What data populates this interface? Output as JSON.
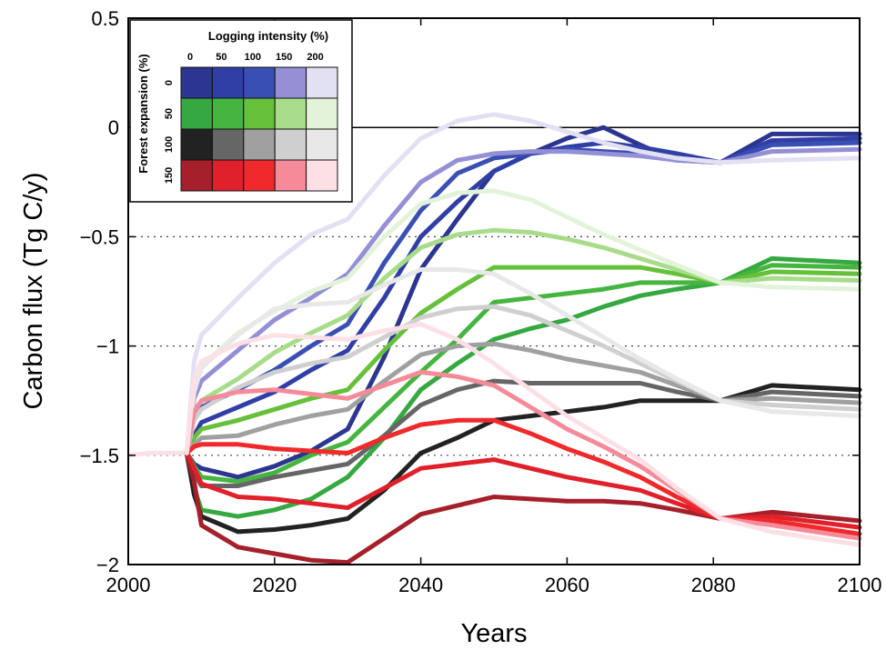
{
  "chart_data": {
    "type": "line",
    "xlabel": "Years",
    "ylabel": "Carbon flux (Tg C/y)",
    "xlim": [
      2000,
      2100
    ],
    "ylim": [
      -2,
      0.5
    ],
    "xticks": [
      "2000",
      "2020",
      "2040",
      "2060",
      "2080",
      "2100"
    ],
    "yticks": [
      "0.5",
      "0",
      "-0.5",
      "-1",
      "-1.5",
      "-2"
    ],
    "grid": "dotted horizontal at -0.5, -1, -1.5; solid line at 0",
    "legend": {
      "placement": "top-left",
      "title_x": "Logging intensity (%)",
      "title_y": "Forest expansion (%)",
      "logging_levels": [
        "0",
        "50",
        "100",
        "150",
        "200"
      ],
      "expansion_levels": [
        "0",
        "50",
        "100",
        "150"
      ],
      "colors": [
        [
          "#2c3590",
          "#2f3fa6",
          "#3a4fb3",
          "#9590d6",
          "#e2e0f3"
        ],
        [
          "#35a840",
          "#45b540",
          "#66c03a",
          "#a8dc8a",
          "#e3f3da"
        ],
        [
          "#222222",
          "#666666",
          "#a0a0a0",
          "#cfcfcf",
          "#e8e8e8"
        ],
        [
          "#a5202a",
          "#e0202a",
          "#f02a2a",
          "#f58a98",
          "#fde0e6"
        ]
      ]
    },
    "series_common_start": {
      "x": [
        2000,
        2003,
        2008
      ],
      "y": [
        -1.5,
        -1.49,
        -1.49
      ]
    },
    "series": [
      {
        "expansion": "0",
        "logging": "0",
        "x": [
          2008,
          2009,
          2010,
          2015,
          2020,
          2025,
          2030,
          2035,
          2040,
          2045,
          2050,
          2055,
          2060,
          2065,
          2070,
          2075,
          2081,
          2088,
          2100
        ],
        "y": [
          -1.49,
          -1.54,
          -1.56,
          -1.6,
          -1.55,
          -1.48,
          -1.38,
          -1.05,
          -0.65,
          -0.42,
          -0.2,
          -0.12,
          -0.05,
          0.0,
          -0.08,
          -0.15,
          -0.16,
          -0.03,
          -0.03
        ]
      },
      {
        "expansion": "0",
        "logging": "50",
        "x": [
          2008,
          2009,
          2010,
          2015,
          2020,
          2025,
          2030,
          2035,
          2040,
          2045,
          2050,
          2055,
          2060,
          2065,
          2070,
          2075,
          2081,
          2088,
          2100
        ],
        "y": [
          -1.49,
          -1.41,
          -1.35,
          -1.28,
          -1.21,
          -1.11,
          -1.02,
          -0.78,
          -0.5,
          -0.34,
          -0.2,
          -0.12,
          -0.09,
          -0.07,
          -0.09,
          -0.12,
          -0.16,
          -0.06,
          -0.05
        ]
      },
      {
        "expansion": "0",
        "logging": "100",
        "x": [
          2008,
          2009,
          2010,
          2015,
          2020,
          2025,
          2030,
          2035,
          2040,
          2045,
          2050,
          2055,
          2060,
          2065,
          2070,
          2075,
          2081,
          2088,
          2100
        ],
        "y": [
          -1.49,
          -1.33,
          -1.28,
          -1.2,
          -1.11,
          -1.0,
          -0.9,
          -0.62,
          -0.38,
          -0.21,
          -0.14,
          -0.12,
          -0.1,
          -0.11,
          -0.12,
          -0.14,
          -0.16,
          -0.08,
          -0.07
        ]
      },
      {
        "expansion": "0",
        "logging": "150",
        "x": [
          2008,
          2009,
          2010,
          2015,
          2020,
          2025,
          2030,
          2035,
          2040,
          2045,
          2050,
          2055,
          2060,
          2065,
          2070,
          2075,
          2081,
          2088,
          2100
        ],
        "y": [
          -1.49,
          -1.24,
          -1.16,
          -1.02,
          -0.88,
          -0.78,
          -0.67,
          -0.45,
          -0.25,
          -0.15,
          -0.12,
          -0.11,
          -0.11,
          -0.12,
          -0.13,
          -0.15,
          -0.16,
          -0.11,
          -0.1
        ]
      },
      {
        "expansion": "0",
        "logging": "200",
        "x": [
          2008,
          2009,
          2010,
          2015,
          2020,
          2025,
          2030,
          2035,
          2040,
          2045,
          2050,
          2055,
          2060,
          2065,
          2070,
          2075,
          2081,
          2088,
          2100
        ],
        "y": [
          -1.49,
          -1.07,
          -0.95,
          -0.78,
          -0.62,
          -0.49,
          -0.42,
          -0.22,
          -0.05,
          0.03,
          0.06,
          0.03,
          -0.02,
          -0.07,
          -0.11,
          -0.14,
          -0.16,
          -0.15,
          -0.14
        ]
      },
      {
        "expansion": "50",
        "logging": "0",
        "x": [
          2008,
          2009,
          2010,
          2015,
          2020,
          2025,
          2030,
          2035,
          2040,
          2045,
          2050,
          2055,
          2060,
          2065,
          2070,
          2075,
          2081,
          2088,
          2100
        ],
        "y": [
          -1.49,
          -1.65,
          -1.75,
          -1.78,
          -1.75,
          -1.7,
          -1.6,
          -1.42,
          -1.2,
          -1.08,
          -0.97,
          -0.92,
          -0.88,
          -0.82,
          -0.77,
          -0.74,
          -0.71,
          -0.6,
          -0.62
        ]
      },
      {
        "expansion": "50",
        "logging": "50",
        "x": [
          2008,
          2009,
          2010,
          2015,
          2020,
          2025,
          2030,
          2035,
          2040,
          2045,
          2050,
          2055,
          2060,
          2065,
          2070,
          2075,
          2081,
          2088,
          2100
        ],
        "y": [
          -1.49,
          -1.55,
          -1.6,
          -1.62,
          -1.58,
          -1.5,
          -1.44,
          -1.28,
          -1.12,
          -0.97,
          -0.8,
          -0.78,
          -0.76,
          -0.74,
          -0.71,
          -0.71,
          -0.71,
          -0.63,
          -0.64
        ]
      },
      {
        "expansion": "50",
        "logging": "100",
        "x": [
          2008,
          2009,
          2010,
          2015,
          2020,
          2025,
          2030,
          2035,
          2040,
          2045,
          2050,
          2055,
          2060,
          2065,
          2070,
          2075,
          2081,
          2088,
          2100
        ],
        "y": [
          -1.49,
          -1.42,
          -1.38,
          -1.34,
          -1.29,
          -1.24,
          -1.2,
          -1.02,
          -0.85,
          -0.74,
          -0.64,
          -0.64,
          -0.64,
          -0.64,
          -0.64,
          -0.67,
          -0.71,
          -0.66,
          -0.67
        ]
      },
      {
        "expansion": "50",
        "logging": "150",
        "x": [
          2008,
          2009,
          2010,
          2015,
          2020,
          2025,
          2030,
          2035,
          2040,
          2045,
          2050,
          2055,
          2060,
          2065,
          2070,
          2075,
          2081,
          2088,
          2100
        ],
        "y": [
          -1.49,
          -1.3,
          -1.25,
          -1.15,
          -1.03,
          -0.94,
          -0.86,
          -0.69,
          -0.55,
          -0.49,
          -0.47,
          -0.48,
          -0.51,
          -0.55,
          -0.6,
          -0.65,
          -0.71,
          -0.69,
          -0.7
        ]
      },
      {
        "expansion": "50",
        "logging": "200",
        "x": [
          2008,
          2009,
          2010,
          2015,
          2020,
          2025,
          2030,
          2035,
          2040,
          2045,
          2050,
          2055,
          2060,
          2065,
          2070,
          2075,
          2081,
          2088,
          2100
        ],
        "y": [
          -1.49,
          -1.18,
          -1.09,
          -0.94,
          -0.84,
          -0.75,
          -0.69,
          -0.5,
          -0.35,
          -0.3,
          -0.29,
          -0.33,
          -0.41,
          -0.49,
          -0.56,
          -0.63,
          -0.71,
          -0.73,
          -0.74
        ]
      },
      {
        "expansion": "100",
        "logging": "0",
        "x": [
          2008,
          2009,
          2010,
          2015,
          2020,
          2025,
          2030,
          2035,
          2040,
          2045,
          2050,
          2055,
          2060,
          2065,
          2070,
          2075,
          2081,
          2088,
          2100
        ],
        "y": [
          -1.49,
          -1.68,
          -1.78,
          -1.85,
          -1.84,
          -1.82,
          -1.79,
          -1.66,
          -1.49,
          -1.42,
          -1.34,
          -1.32,
          -1.3,
          -1.28,
          -1.25,
          -1.25,
          -1.25,
          -1.18,
          -1.2
        ]
      },
      {
        "expansion": "100",
        "logging": "50",
        "x": [
          2008,
          2009,
          2010,
          2015,
          2020,
          2025,
          2030,
          2035,
          2040,
          2045,
          2050,
          2055,
          2060,
          2065,
          2070,
          2075,
          2081,
          2088,
          2100
        ],
        "y": [
          -1.49,
          -1.58,
          -1.64,
          -1.64,
          -1.6,
          -1.57,
          -1.54,
          -1.41,
          -1.27,
          -1.2,
          -1.16,
          -1.17,
          -1.17,
          -1.17,
          -1.17,
          -1.21,
          -1.25,
          -1.21,
          -1.23
        ]
      },
      {
        "expansion": "100",
        "logging": "100",
        "x": [
          2008,
          2009,
          2010,
          2015,
          2020,
          2025,
          2030,
          2035,
          2040,
          2045,
          2050,
          2055,
          2060,
          2065,
          2070,
          2075,
          2081,
          2088,
          2100
        ],
        "y": [
          -1.49,
          -1.45,
          -1.42,
          -1.41,
          -1.36,
          -1.32,
          -1.29,
          -1.16,
          -1.04,
          -1.0,
          -0.99,
          -1.02,
          -1.06,
          -1.09,
          -1.12,
          -1.18,
          -1.25,
          -1.24,
          -1.26
        ]
      },
      {
        "expansion": "100",
        "logging": "150",
        "x": [
          2008,
          2009,
          2010,
          2015,
          2020,
          2025,
          2030,
          2035,
          2040,
          2045,
          2050,
          2055,
          2060,
          2065,
          2070,
          2075,
          2081,
          2088,
          2100
        ],
        "y": [
          -1.49,
          -1.34,
          -1.29,
          -1.19,
          -1.12,
          -1.08,
          -1.05,
          -0.96,
          -0.87,
          -0.83,
          -0.82,
          -0.86,
          -0.93,
          -1.0,
          -1.08,
          -1.16,
          -1.25,
          -1.27,
          -1.29
        ]
      },
      {
        "expansion": "100",
        "logging": "200",
        "x": [
          2008,
          2009,
          2010,
          2015,
          2020,
          2025,
          2030,
          2035,
          2040,
          2045,
          2050,
          2055,
          2060,
          2065,
          2070,
          2075,
          2081,
          2088,
          2100
        ],
        "y": [
          -1.49,
          -1.21,
          -1.1,
          -0.95,
          -0.83,
          -0.81,
          -0.8,
          -0.72,
          -0.65,
          -0.65,
          -0.67,
          -0.76,
          -0.86,
          -0.96,
          -1.06,
          -1.15,
          -1.25,
          -1.3,
          -1.32
        ]
      },
      {
        "expansion": "150",
        "logging": "0",
        "x": [
          2008,
          2009,
          2010,
          2015,
          2020,
          2025,
          2030,
          2035,
          2040,
          2045,
          2050,
          2055,
          2060,
          2065,
          2070,
          2075,
          2081,
          2088,
          2100
        ],
        "y": [
          -1.49,
          -1.62,
          -1.82,
          -1.92,
          -1.95,
          -1.98,
          -1.99,
          -1.88,
          -1.77,
          -1.73,
          -1.69,
          -1.7,
          -1.71,
          -1.71,
          -1.72,
          -1.75,
          -1.79,
          -1.76,
          -1.8
        ]
      },
      {
        "expansion": "150",
        "logging": "50",
        "x": [
          2008,
          2009,
          2010,
          2015,
          2020,
          2025,
          2030,
          2035,
          2040,
          2045,
          2050,
          2055,
          2060,
          2065,
          2070,
          2075,
          2081,
          2088,
          2100
        ],
        "y": [
          -1.49,
          -1.56,
          -1.63,
          -1.69,
          -1.7,
          -1.72,
          -1.74,
          -1.65,
          -1.56,
          -1.54,
          -1.52,
          -1.56,
          -1.6,
          -1.63,
          -1.66,
          -1.72,
          -1.79,
          -1.78,
          -1.83
        ]
      },
      {
        "expansion": "150",
        "logging": "100",
        "x": [
          2008,
          2009,
          2010,
          2015,
          2020,
          2025,
          2030,
          2035,
          2040,
          2045,
          2050,
          2055,
          2060,
          2065,
          2070,
          2075,
          2081,
          2088,
          2100
        ],
        "y": [
          -1.49,
          -1.46,
          -1.45,
          -1.45,
          -1.47,
          -1.48,
          -1.49,
          -1.42,
          -1.36,
          -1.34,
          -1.34,
          -1.4,
          -1.47,
          -1.53,
          -1.6,
          -1.69,
          -1.79,
          -1.8,
          -1.86
        ]
      },
      {
        "expansion": "150",
        "logging": "150",
        "x": [
          2008,
          2009,
          2010,
          2015,
          2020,
          2025,
          2030,
          2035,
          2040,
          2045,
          2050,
          2055,
          2060,
          2065,
          2070,
          2075,
          2081,
          2088,
          2100
        ],
        "y": [
          -1.49,
          -1.3,
          -1.25,
          -1.21,
          -1.2,
          -1.22,
          -1.24,
          -1.18,
          -1.12,
          -1.14,
          -1.18,
          -1.28,
          -1.38,
          -1.46,
          -1.55,
          -1.66,
          -1.79,
          -1.82,
          -1.88
        ]
      },
      {
        "expansion": "150",
        "logging": "200",
        "x": [
          2008,
          2009,
          2010,
          2015,
          2020,
          2025,
          2030,
          2035,
          2040,
          2045,
          2050,
          2055,
          2060,
          2065,
          2070,
          2075,
          2081,
          2088,
          2100
        ],
        "y": [
          -1.49,
          -1.15,
          -1.07,
          -0.99,
          -0.95,
          -0.96,
          -0.97,
          -0.93,
          -0.9,
          -0.97,
          -1.08,
          -1.2,
          -1.32,
          -1.42,
          -1.52,
          -1.65,
          -1.79,
          -1.85,
          -1.91
        ]
      }
    ]
  }
}
